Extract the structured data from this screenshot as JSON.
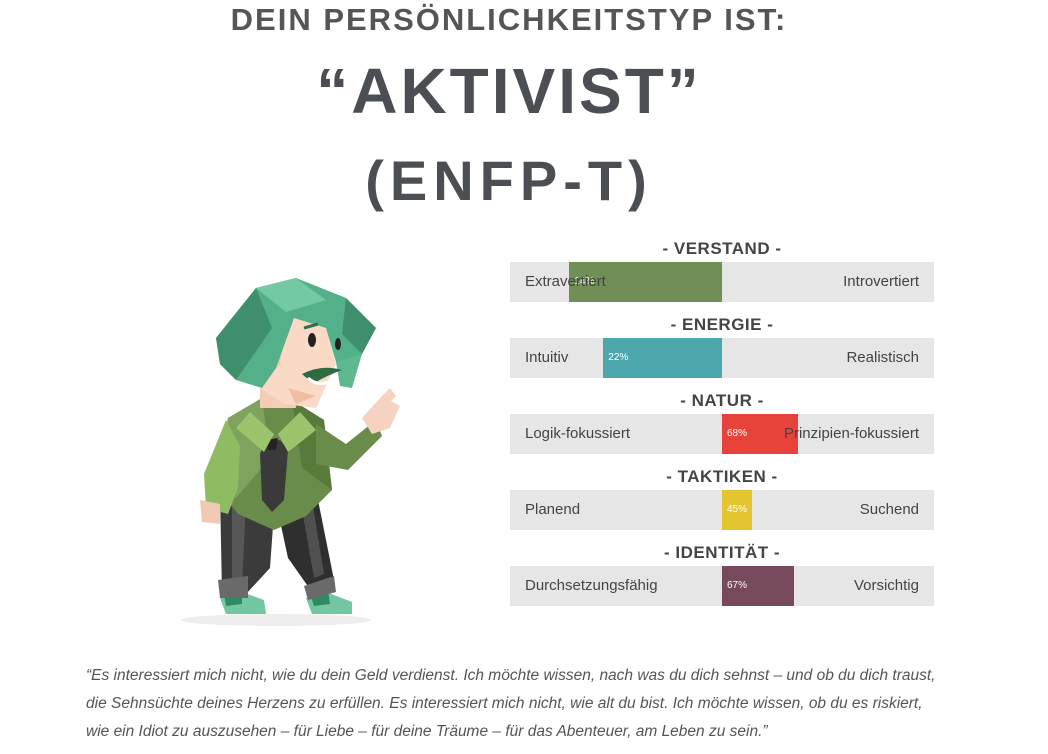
{
  "header": {
    "intro": "DEIN PERSÖNLICHKEITSTYP IST:",
    "type_name": "“AKTIVIST”",
    "type_code": "(ENFP-T)"
  },
  "character": {
    "icon": "activist-character-illustration"
  },
  "scales": [
    {
      "title": "- VERSTAND -",
      "left": "Extravertiert",
      "right": "Introvertiert",
      "percent_label": "14%",
      "value": 14,
      "side": "left",
      "color": "#6f8f57"
    },
    {
      "title": "- ENERGIE -",
      "left": "Intuitiv",
      "right": "Realistisch",
      "percent_label": "22%",
      "value": 22,
      "side": "left",
      "color": "#4ea6ad"
    },
    {
      "title": "- NATUR -",
      "left": "Logik-fokussiert",
      "right": "Prinzipien-fokussiert",
      "percent_label": "68%",
      "value": 68,
      "side": "right",
      "color": "#e8433a"
    },
    {
      "title": "- TAKTIKEN -",
      "left": "Planend",
      "right": "Suchend",
      "percent_label": "45%",
      "value": 45,
      "side": "right",
      "color": "#e3c52f"
    },
    {
      "title": "- IDENTITÄT -",
      "left": "Durchsetzungsfähig",
      "right": "Vorsichtig",
      "percent_label": "67%",
      "value": 67,
      "side": "right",
      "color": "#76495c"
    }
  ],
  "quote": {
    "line1": "“Es interessiert mich nicht, wie du dein Geld verdienst. Ich möchte wissen, nach was du dich sehnst – und ob du dich traust,",
    "line2": "die Sehnsüchte deines Herzens zu erfüllen. Es interessiert mich nicht, wie alt du bist. Ich möchte wissen, ob du es riskiert,",
    "line3": "wie ein Idiot zu auszusehen – für Liebe – für deine Träume – für das Abenteuer, am Leben zu sein.”"
  }
}
